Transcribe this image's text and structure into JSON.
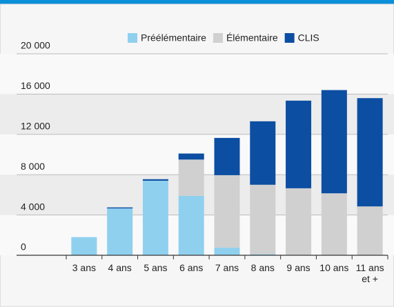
{
  "chart_data": {
    "type": "stacked_bar",
    "categories": [
      "3 ans",
      "4 ans",
      "5 ans",
      "6 ans",
      "7 ans",
      "8 ans",
      "9 ans",
      "10 ans",
      "11 ans et +"
    ],
    "series": [
      {
        "name": "Préélémentaire",
        "color": "#8fd0ef",
        "values": [
          1800,
          4650,
          7400,
          5900,
          750,
          100,
          50,
          0,
          0
        ]
      },
      {
        "name": "Élémentaire",
        "color": "#d0d0d0",
        "values": [
          0,
          0,
          0,
          3600,
          7200,
          6900,
          6600,
          6150,
          4850
        ]
      },
      {
        "name": "CLIS",
        "color": "#0c4ea2",
        "values": [
          0,
          100,
          150,
          600,
          3700,
          6300,
          8700,
          10250,
          10750
        ]
      }
    ],
    "ylim": [
      0,
      20000
    ],
    "yticks": [
      0,
      {
        "value": 4000,
        "label": "4 000"
      },
      {
        "value": 8000,
        "label": "8 000"
      },
      {
        "value": 12000,
        "label": "12 000"
      },
      {
        "value": 16000,
        "label": "16 000"
      },
      {
        "value": 20000,
        "label": "20 000"
      }
    ],
    "grid": true,
    "legend": "top"
  }
}
